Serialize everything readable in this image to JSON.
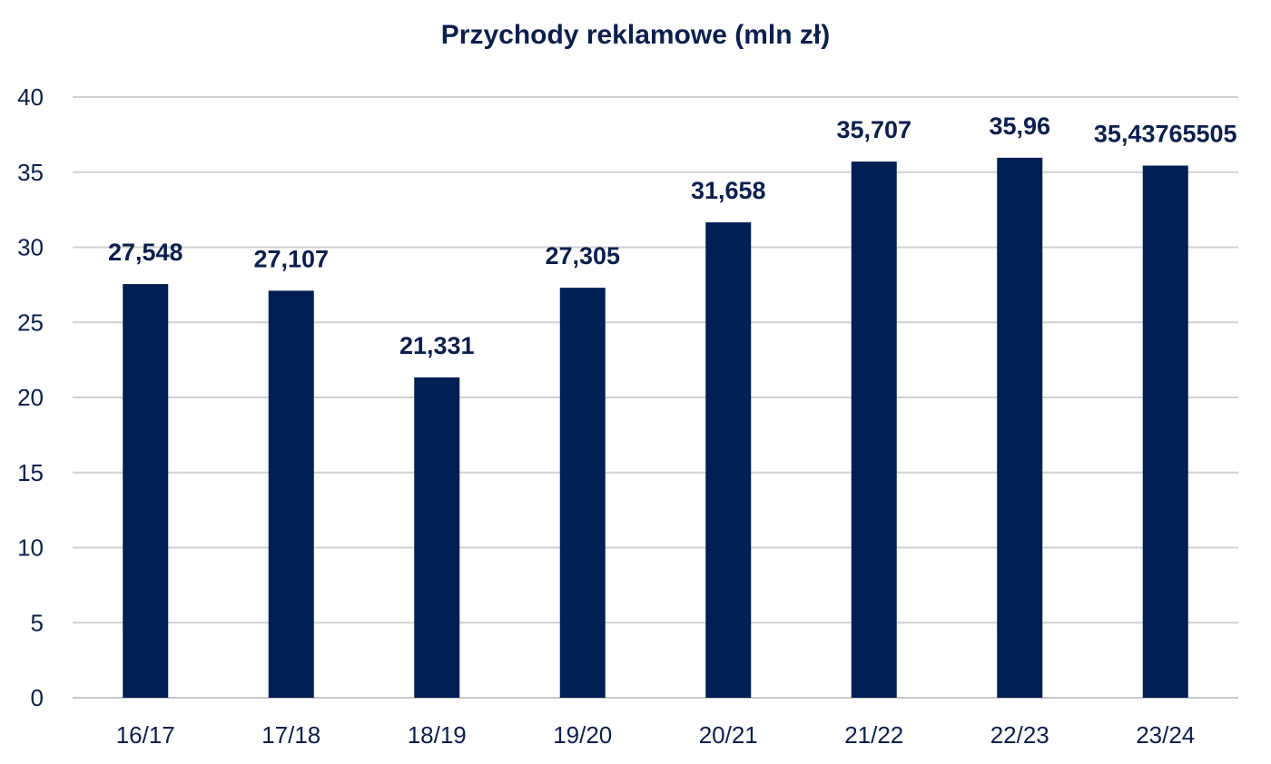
{
  "colors": {
    "bar": "#001f54",
    "text": "#0b1f4f",
    "grid": "#d0d0d0"
  },
  "chart_data": {
    "type": "bar",
    "title": "Przychody reklamowe (mln zł)",
    "xlabel": "",
    "ylabel": "",
    "categories": [
      "16/17",
      "17/18",
      "18/19",
      "19/20",
      "20/21",
      "21/22",
      "22/23",
      "23/24"
    ],
    "values": [
      27.548,
      27.107,
      21.331,
      27.305,
      31.658,
      35.707,
      35.96,
      35.43765505
    ],
    "data_labels": [
      "27,548",
      "27,107",
      "21,331",
      "27,305",
      "31,658",
      "35,707",
      "35,96",
      "35,43765505"
    ],
    "y_ticks": [
      "0",
      "5",
      "10",
      "15",
      "20",
      "25",
      "30",
      "35",
      "40"
    ],
    "y_tick_values": [
      0,
      5,
      10,
      15,
      20,
      25,
      30,
      35,
      40
    ],
    "ylim": [
      0,
      40
    ],
    "grid": true,
    "legend": "none"
  }
}
